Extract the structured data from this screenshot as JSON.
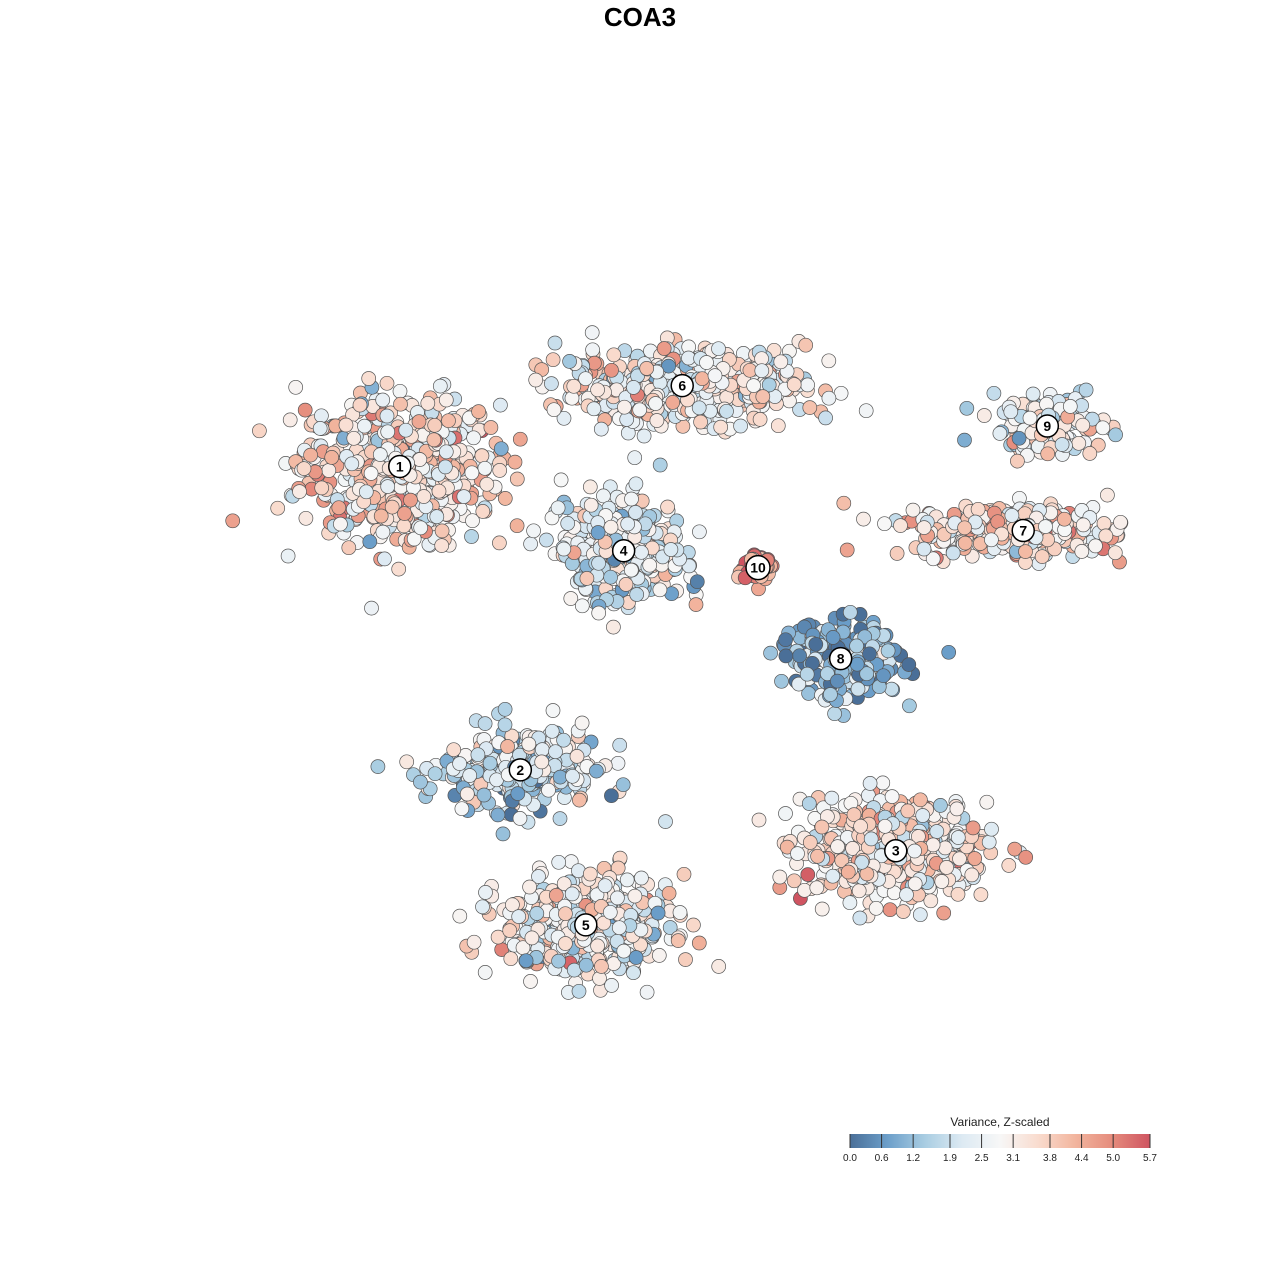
{
  "chart_data": {
    "type": "scatter",
    "title": "COA3",
    "xlabel": "",
    "ylabel": "",
    "grid": false,
    "legend_placement": "bottom-right",
    "legend": {
      "title": "Variance, Z-scaled",
      "ticks": [
        "0.0",
        "0.6",
        "1.2",
        "1.9",
        "2.5",
        "3.1",
        "3.8",
        "4.4",
        "5.0",
        "5.7"
      ],
      "range": [
        0.0,
        5.7
      ],
      "colors": [
        "#4a6f98",
        "#6c9fca",
        "#a9cde2",
        "#ddeaf3",
        "#f7f7f7",
        "#f9dccf",
        "#f2b59e",
        "#e58b7c",
        "#cf5461"
      ]
    },
    "clusters": [
      {
        "label": "1",
        "x": -7.2,
        "y": 5.5,
        "mean_value": 3.3,
        "sd": [
          2.6,
          1.9
        ],
        "n": 620
      },
      {
        "label": "2",
        "x": -3.7,
        "y": -3.5,
        "mean_value": 1.9,
        "sd": [
          2.0,
          1.1
        ],
        "n": 300
      },
      {
        "label": "3",
        "x": 7.2,
        "y": -5.9,
        "mean_value": 3.2,
        "sd": [
          2.4,
          1.3
        ],
        "n": 520
      },
      {
        "label": "4",
        "x": -0.7,
        "y": 3.0,
        "mean_value": 2.4,
        "sd": [
          1.6,
          1.4
        ],
        "n": 380
      },
      {
        "label": "5",
        "x": -1.8,
        "y": -8.1,
        "mean_value": 2.8,
        "sd": [
          2.2,
          1.3
        ],
        "n": 480
      },
      {
        "label": "6",
        "x": 1.0,
        "y": 7.9,
        "mean_value": 2.9,
        "sd": [
          3.2,
          1.0
        ],
        "n": 520
      },
      {
        "label": "7",
        "x": 10.9,
        "y": 3.6,
        "mean_value": 3.3,
        "sd": [
          2.8,
          0.7
        ],
        "n": 330
      },
      {
        "label": "8",
        "x": 5.6,
        "y": -0.2,
        "mean_value": 1.0,
        "sd": [
          1.6,
          1.0
        ],
        "n": 240
      },
      {
        "label": "9",
        "x": 11.6,
        "y": 6.7,
        "mean_value": 2.7,
        "sd": [
          1.4,
          0.8
        ],
        "n": 170
      },
      {
        "label": "10",
        "x": 3.2,
        "y": 2.5,
        "mean_value": 5.3,
        "sd": [
          0.4,
          0.4
        ],
        "n": 60
      }
    ],
    "xlim": [
      -13.0,
      14.0
    ],
    "ylim": [
      -13.0,
      14.0
    ]
  }
}
